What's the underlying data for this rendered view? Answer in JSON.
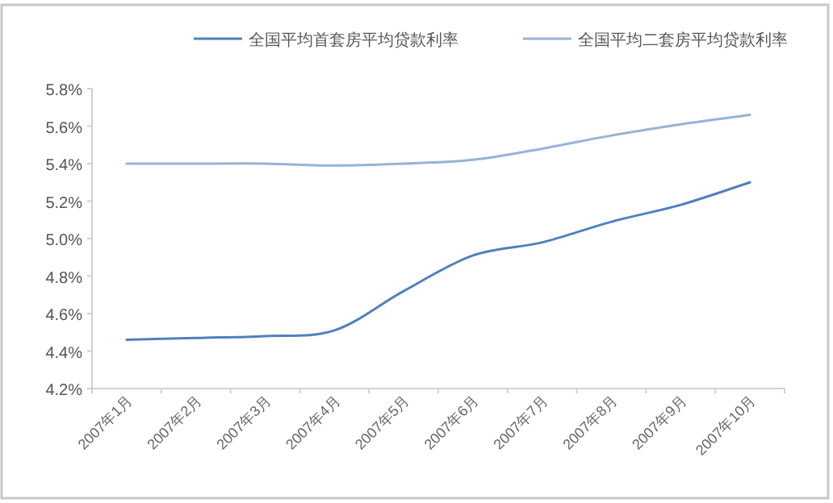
{
  "chart_data": {
    "type": "line",
    "categories": [
      "2007年1月",
      "2007年2月",
      "2007年3月",
      "2007年4月",
      "2007年5月",
      "2007年6月",
      "2007年7月",
      "2007年8月",
      "2007年9月",
      "2007年10月"
    ],
    "series": [
      {
        "name": "全国平均首套房平均贷款利率",
        "color": "#4f81bd",
        "values": [
          4.46,
          4.47,
          4.48,
          4.51,
          4.72,
          4.91,
          4.98,
          5.09,
          5.18,
          5.3
        ]
      },
      {
        "name": "全国平均二套房平均贷款利率",
        "color": "#95b3d7",
        "values": [
          5.4,
          5.4,
          5.4,
          5.39,
          5.4,
          5.42,
          5.48,
          5.55,
          5.61,
          5.66
        ]
      }
    ],
    "ylim": [
      4.2,
      5.8
    ],
    "yticks": [
      {
        "value": 4.2,
        "label": "4.2%"
      },
      {
        "value": 4.4,
        "label": "4.4%"
      },
      {
        "value": 4.6,
        "label": "4.6%"
      },
      {
        "value": 4.8,
        "label": "4.8%"
      },
      {
        "value": 5.0,
        "label": "5.0%"
      },
      {
        "value": 5.2,
        "label": "5.2%"
      },
      {
        "value": 5.4,
        "label": "5.4%"
      },
      {
        "value": 5.6,
        "label": "5.6%"
      },
      {
        "value": 5.8,
        "label": "5.8%"
      }
    ],
    "legend": "top",
    "marker": "none",
    "line_style": "solid",
    "grid": false
  }
}
